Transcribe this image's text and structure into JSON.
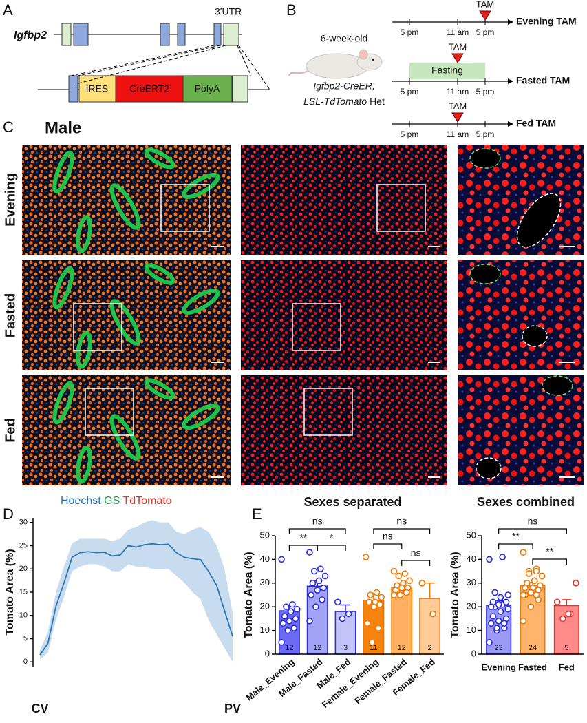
{
  "panel_letters": [
    "A",
    "B",
    "C",
    "D",
    "E"
  ],
  "gene": {
    "name": "Igfbp2",
    "utr": "3'UTR",
    "ires": "IRES",
    "cre": "CreERT2",
    "polya": "PolyA"
  },
  "schematic": {
    "age": "6-week-old",
    "genotype_line1": "Igfbp2-CreER;",
    "genotype_line2_italic": "LSL-TdTomato",
    "genotype_line2_plain": "Het",
    "timelines": [
      {
        "name": "Evening TAM",
        "ticks": [
          "5 pm",
          "11 am",
          "5 pm"
        ],
        "tam": "TAM"
      },
      {
        "name": "Fasted TAM",
        "ticks": [
          "5 pm",
          "11 am",
          "5 pm"
        ],
        "tam": "TAM",
        "fasting": "Fasting"
      },
      {
        "name": "Fed TAM",
        "ticks": [
          "5 pm",
          "11 am",
          "5 pm"
        ],
        "tam": "TAM"
      }
    ]
  },
  "images": {
    "title": "Male",
    "rows": [
      "Evening",
      "Fasted",
      "Fed"
    ],
    "legend": [
      {
        "text": "Hoechst",
        "color": "#1f6fb4"
      },
      {
        "text": "GS",
        "color": "#1aa34a"
      },
      {
        "text": "TdTomato",
        "color": "#e8322b"
      }
    ]
  },
  "chart_data": [
    {
      "type": "line",
      "ylabel": "Tomato Area (%)",
      "color": "#2f78b5",
      "band_color": "#c7dcef",
      "categories": [
        "CV",
        null,
        null,
        null,
        null,
        null,
        null,
        null,
        null,
        null,
        null,
        null,
        null,
        null,
        null,
        null,
        null,
        null,
        null,
        null,
        null,
        null,
        null,
        null,
        "PV"
      ],
      "values": [
        1.5,
        4,
        12,
        17,
        22.5,
        23.5,
        23.7,
        23.5,
        23.6,
        22.8,
        23,
        25,
        24.7,
        25.2,
        25.4,
        25.2,
        25.3,
        23.5,
        22.5,
        22.2,
        22,
        19.5,
        16.5,
        11,
        5.5
      ],
      "lower": [
        0.5,
        2,
        9,
        14,
        19.5,
        20.5,
        21,
        21,
        20.5,
        19.5,
        19.5,
        21,
        20.5,
        20.5,
        20,
        20,
        20,
        18.5,
        17,
        15,
        13.5,
        9,
        6,
        3,
        0
      ],
      "upper": [
        2.5,
        6.5,
        15,
        20.5,
        25.5,
        26.5,
        26.5,
        26.5,
        26.5,
        26,
        26.5,
        28.5,
        29,
        30,
        30.5,
        30,
        30,
        28,
        27.5,
        28.5,
        29,
        28,
        25,
        20,
        10.5
      ],
      "ylim": [
        -1,
        31
      ],
      "yticks": [
        0,
        5,
        10,
        15,
        20,
        25,
        30
      ]
    },
    {
      "type": "bar",
      "title": "Sexes separated",
      "ylabel": "Tomato Area (%)",
      "categories": [
        "Male_Evening",
        "Male_Fasted",
        "Male_Fed",
        "Female_Evening",
        "Female_Fasted",
        "Female_Fed"
      ],
      "values": [
        18.3,
        28.7,
        18,
        22.5,
        28,
        23.5
      ],
      "errors": [
        2.5,
        2.2,
        2.8,
        3.3,
        1.2,
        6.5
      ],
      "n": [
        12,
        12,
        3,
        11,
        12,
        2
      ],
      "colors": [
        "#6a6af2",
        "#a3a3f6",
        "#c3c3fa",
        "#f7830f",
        "#ffb060",
        "#ffcc99"
      ],
      "edge_colors": [
        "#2b2be6",
        "#2b2be6",
        "#2b2be6",
        "#f07800",
        "#f07800",
        "#f07800"
      ],
      "points": [
        [
          40,
          21,
          20,
          19,
          18,
          16,
          15,
          14,
          13,
          11,
          10,
          5
        ],
        [
          43,
          36,
          35,
          33,
          31,
          30,
          28,
          27,
          25,
          23,
          20,
          14
        ],
        [
          22,
          17,
          15
        ],
        [
          41,
          26,
          25,
          24,
          22,
          22,
          21,
          20,
          13,
          11,
          5
        ],
        [
          35,
          34,
          33,
          31,
          30,
          29,
          28,
          28,
          27,
          26,
          25,
          25
        ],
        [
          30,
          17
        ]
      ],
      "comparisons": [
        {
          "from": "Male_Evening",
          "to": "Male_Fed",
          "label": "ns"
        },
        {
          "from": "Male_Evening",
          "to": "Male_Fasted",
          "label": "**"
        },
        {
          "from": "Male_Fasted",
          "to": "Male_Fed",
          "label": "*"
        },
        {
          "from": "Female_Evening",
          "to": "Female_Fed",
          "label": "ns"
        },
        {
          "from": "Female_Evening",
          "to": "Female_Fasted",
          "label": "ns"
        },
        {
          "from": "Female_Fasted",
          "to": "Female_Fed",
          "label": "ns"
        }
      ],
      "ylim": [
        0,
        50
      ],
      "yticks": [
        0,
        10,
        20,
        30,
        40,
        50
      ]
    },
    {
      "type": "bar",
      "title": "Sexes combined",
      "ylabel": "Tomato Area (%)",
      "categories": [
        "Evening",
        "Fasted",
        "Fed"
      ],
      "values": [
        20.5,
        29,
        20.5
      ],
      "errors": [
        2,
        1.3,
        2.5
      ],
      "n": [
        23,
        24,
        5
      ],
      "colors": [
        "#9a9af5",
        "#ffb36b",
        "#ff8a8a"
      ],
      "edge_colors": [
        "#2b2be6",
        "#f07800",
        "#e8322b"
      ],
      "points": [
        [
          40,
          21,
          20,
          19,
          18,
          16,
          15,
          14,
          13,
          11,
          10,
          5,
          41,
          26,
          25,
          24,
          22,
          22,
          21,
          20,
          13,
          11,
          5
        ],
        [
          43,
          36,
          35,
          33,
          31,
          30,
          28,
          27,
          25,
          23,
          20,
          14,
          35,
          34,
          33,
          31,
          30,
          29,
          28,
          28,
          27,
          26,
          25,
          25
        ],
        [
          22,
          17,
          15,
          30,
          17
        ]
      ],
      "comparisons": [
        {
          "from": "Evening",
          "to": "Fed",
          "label": "ns"
        },
        {
          "from": "Evening",
          "to": "Fasted",
          "label": "**"
        },
        {
          "from": "Fasted",
          "to": "Fed",
          "label": "**"
        }
      ],
      "ylim": [
        0,
        50
      ],
      "yticks": [
        0,
        10,
        20,
        30,
        40,
        50
      ]
    }
  ]
}
